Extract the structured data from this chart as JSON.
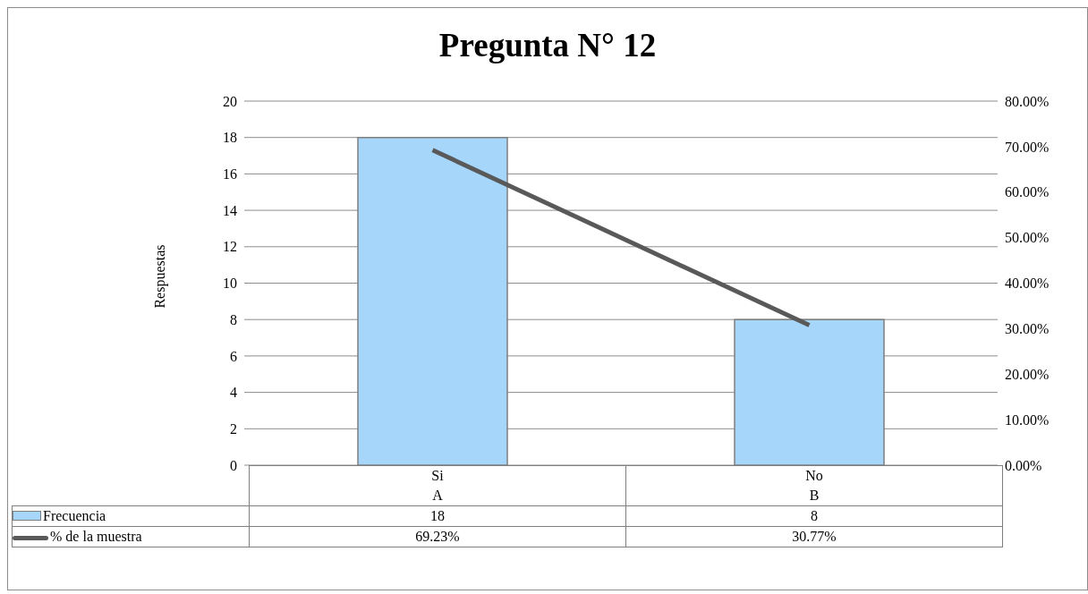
{
  "chart_data": {
    "type": "bar",
    "title": "Pregunta N° 12",
    "ylabel": "Respuestas",
    "categories": [
      "Si\nA",
      "No\nB"
    ],
    "series": [
      {
        "name": "Frecuencia",
        "color": "#a6d6fa",
        "values": [
          18,
          8
        ]
      },
      {
        "name": "% de la muestra",
        "type": "line",
        "axis": "y2",
        "color": "#595959",
        "values": [
          69.23,
          30.77
        ],
        "value_labels": [
          "69.23%",
          "30.77%"
        ]
      }
    ],
    "ylim": [
      0,
      20
    ],
    "yticks": [
      0,
      2,
      4,
      6,
      8,
      10,
      12,
      14,
      16,
      18,
      20
    ],
    "y2lim": [
      0,
      80
    ],
    "y2ticks": [
      {
        "value": 0,
        "label": "0.00%"
      },
      {
        "value": 10,
        "label": "10.00%"
      },
      {
        "value": 20,
        "label": "20.00%"
      },
      {
        "value": 30,
        "label": "30.00%"
      },
      {
        "value": 40,
        "label": "40.00%"
      },
      {
        "value": 50,
        "label": "50.00%"
      },
      {
        "value": 60,
        "label": "60.00%"
      },
      {
        "value": 70,
        "label": "70.00%"
      },
      {
        "value": 80,
        "label": "80.00%"
      }
    ],
    "grid": "y",
    "legend": "bottom",
    "marker": "none",
    "line_style": "solid",
    "data_labels": true
  }
}
